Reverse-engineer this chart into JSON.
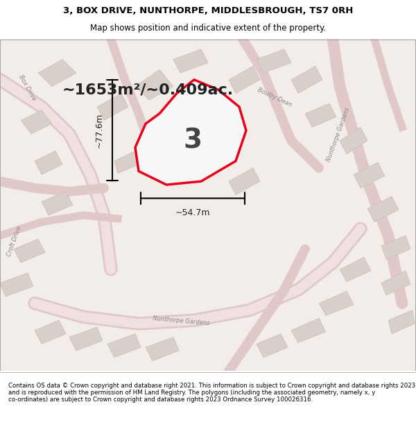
{
  "title_line1": "3, BOX DRIVE, NUNTHORPE, MIDDLESBROUGH, TS7 0RH",
  "title_line2": "Map shows position and indicative extent of the property.",
  "area_text": "~1653m²/~0.409ac.",
  "label_number": "3",
  "dim_vertical": "~77.6m",
  "dim_horizontal": "~54.7m",
  "footer_text": "Contains OS data © Crown copyright and database right 2021. This information is subject to Crown copyright and database rights 2023 and is reproduced with the permission of HM Land Registry. The polygons (including the associated geometry, namely x, y co-ordinates) are subject to Crown copyright and database rights 2023 Ordnance Survey 100026316.",
  "map_bg": "#f2ede8",
  "plot_fill": "#f5f5f5",
  "plot_edge": "#e8001c",
  "road_color": "#e8c8c8",
  "building_fill": "#d8d0c8",
  "building_edge": "#c0b8b0",
  "road_line_color": "#e87878",
  "title_bg": "#ffffff",
  "footer_bg": "#ffffff",
  "map_border": "#cccccc"
}
